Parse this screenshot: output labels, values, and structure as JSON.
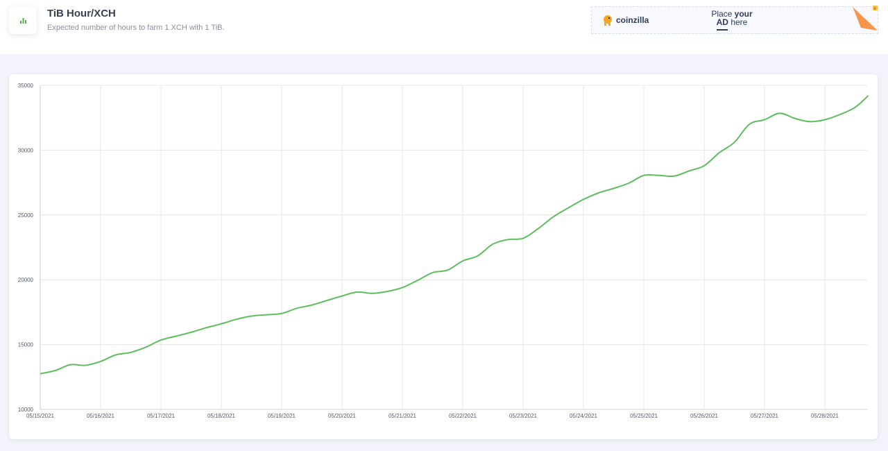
{
  "header": {
    "title": "TiB Hour/XCH",
    "subtitle": "Expected number of hours to farm 1 XCH with 1 TiB.",
    "icon": "bar-chart-icon"
  },
  "ad": {
    "brand": "coinzilla",
    "place_line1_prefix": "Place ",
    "place_line1_bold": "your",
    "place_line2_bold": "AD",
    "place_line2_suffix": " here",
    "accent": "#f7964b"
  },
  "colors": {
    "line": "#5cbd5c",
    "grid": "#e6e6e6",
    "accent_green": "#4caf50"
  },
  "chart_data": {
    "type": "line",
    "title": "",
    "xlabel": "",
    "ylabel": "",
    "ylim": [
      10000,
      35000
    ],
    "yticks": [
      10000,
      15000,
      20000,
      25000,
      30000,
      35000
    ],
    "xticks": [
      "05/15/2021",
      "05/16/2021",
      "05/17/2021",
      "05/18/2021",
      "05/19/2021",
      "05/20/2021",
      "05/21/2021",
      "05/22/2021",
      "05/23/2021",
      "05/24/2021",
      "05/25/2021",
      "05/26/2021",
      "05/27/2021",
      "05/28/2021"
    ],
    "grid": true,
    "legend": "none",
    "series": [
      {
        "x": [
          0,
          0.25,
          0.5,
          0.75,
          1,
          1.25,
          1.5,
          1.75,
          2,
          2.25,
          2.5,
          2.75,
          3,
          3.25,
          3.5,
          3.75,
          4,
          4.25,
          4.5,
          4.75,
          5,
          5.25,
          5.5,
          5.75,
          6,
          6.25,
          6.5,
          6.75,
          7,
          7.25,
          7.5,
          7.75,
          8,
          8.25,
          8.5,
          8.75,
          9,
          9.25,
          9.5,
          9.75,
          10,
          10.25,
          10.5,
          10.75,
          11,
          11.25,
          11.5,
          11.75,
          12,
          12.25,
          12.5,
          12.75,
          13,
          13.25,
          13.5,
          13.72
        ],
        "values": [
          12750,
          13000,
          13450,
          13400,
          13700,
          14200,
          14400,
          14800,
          15350,
          15650,
          15950,
          16300,
          16600,
          16950,
          17200,
          17300,
          17400,
          17800,
          18050,
          18400,
          18750,
          19050,
          18950,
          19100,
          19400,
          19950,
          20550,
          20750,
          21450,
          21850,
          22750,
          23100,
          23200,
          23950,
          24850,
          25550,
          26200,
          26700,
          27050,
          27450,
          28050,
          28050,
          28000,
          28400,
          28800,
          29800,
          30600,
          32000,
          32350,
          32850,
          32450,
          32200,
          32350,
          32750,
          33300,
          34200
        ]
      }
    ]
  }
}
